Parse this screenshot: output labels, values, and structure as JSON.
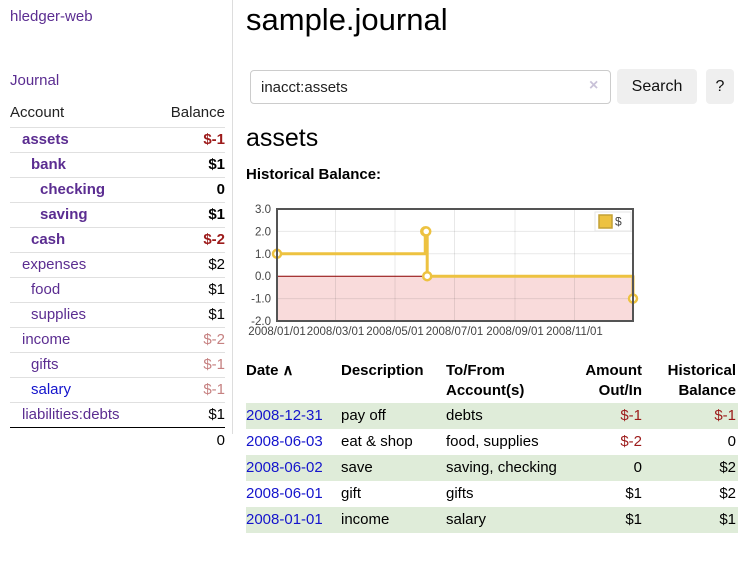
{
  "colors": {
    "link_purple": "#5b2d91",
    "link_blue": "#1414cc",
    "negative_red": "#9c1a1a",
    "negative_muted": "#c68181",
    "row_green": "#dfecd9",
    "chart_gold": "#edc240",
    "chart_negative_bg": "#f9dbdb",
    "chart_zero_line": "#8b0000"
  },
  "sidebar": {
    "app_title": "hledger-web",
    "journal_link": "Journal",
    "accounts_table": {
      "headers": {
        "account": "Account",
        "balance": "Balance"
      },
      "rows": [
        {
          "name": "assets",
          "balance": "$-1",
          "indent": 0,
          "bold": true,
          "balance_style": "neg-strong"
        },
        {
          "name": "bank",
          "balance": "$1",
          "indent": 1,
          "bold": true,
          "balance_style": "normal"
        },
        {
          "name": "checking",
          "balance": "0",
          "indent": 2,
          "bold": true,
          "balance_style": "normal"
        },
        {
          "name": "saving",
          "balance": "$1",
          "indent": 2,
          "bold": true,
          "balance_style": "normal"
        },
        {
          "name": "cash",
          "balance": "$-2",
          "indent": 1,
          "bold": true,
          "balance_style": "neg-strong"
        },
        {
          "name": "expenses",
          "balance": "$2",
          "indent": 0,
          "bold": false,
          "balance_style": "normal"
        },
        {
          "name": "food",
          "balance": "$1",
          "indent": 1,
          "bold": false,
          "balance_style": "normal"
        },
        {
          "name": "supplies",
          "balance": "$1",
          "indent": 1,
          "bold": false,
          "balance_style": "normal"
        },
        {
          "name": "income",
          "balance": "$-2",
          "indent": 0,
          "bold": false,
          "balance_style": "neg-muted"
        },
        {
          "name": "gifts",
          "balance": "$-1",
          "indent": 1,
          "bold": false,
          "balance_style": "neg-muted"
        },
        {
          "name": "salary",
          "balance": "$-1",
          "indent": 1,
          "bold": false,
          "balance_style": "neg-muted",
          "link_color": "blue"
        },
        {
          "name": "liabilities:debts",
          "balance": "$1",
          "indent": 0,
          "bold": false,
          "balance_style": "normal"
        }
      ],
      "total": "0"
    }
  },
  "main": {
    "title": "sample.journal",
    "search": {
      "value": "inacct:assets",
      "clear_icon": "×",
      "search_button": "Search",
      "help_button": "?"
    },
    "account_heading": "assets",
    "chart_label": "Historical Balance:"
  },
  "chart_data": {
    "type": "line",
    "step": true,
    "title": "Historical Balance:",
    "series": [
      {
        "name": "$",
        "points": [
          [
            "2008-01-01",
            1
          ],
          [
            "2008-06-01",
            2
          ],
          [
            "2008-06-02",
            2
          ],
          [
            "2008-06-03",
            0
          ],
          [
            "2008-12-31",
            -1
          ]
        ]
      }
    ],
    "x_range": [
      "2008-01-01",
      "2008-12-31"
    ],
    "ylim": [
      -2,
      3
    ],
    "y_ticks": [
      3.0,
      2.0,
      1.0,
      0.0,
      -1.0,
      -2.0
    ],
    "y_tick_labels": [
      "3.0",
      "2.0",
      "1.0",
      "0.0",
      "-1.0",
      "-2.0"
    ],
    "x_tick_dates": [
      "2008-01-01",
      "2008-03-01",
      "2008-05-01",
      "2008-07-01",
      "2008-09-01",
      "2008-11-01"
    ],
    "x_tick_labels": [
      "2008/01/01",
      "2008/03/01",
      "2008/05/01",
      "2008/07/01",
      "2008/09/01",
      "2008/11/01"
    ],
    "legend": {
      "label": "$",
      "position": "top-right"
    },
    "grid": true,
    "negative_region_shaded": true
  },
  "transactions": {
    "headers": [
      "Date",
      "Description",
      "To/From Account(s)",
      "Amount Out/In",
      "Historical Balance"
    ],
    "sort_icon": "∧",
    "rows": [
      {
        "date": "2008-12-31",
        "description": "pay off",
        "accounts": "debts",
        "amount": "$-1",
        "balance": "$-1",
        "amount_negative": true,
        "balance_negative": true
      },
      {
        "date": "2008-06-03",
        "description": "eat & shop",
        "accounts": "food, supplies",
        "amount": "$-2",
        "balance": "0",
        "amount_negative": true,
        "balance_negative": false
      },
      {
        "date": "2008-06-02",
        "description": "save",
        "accounts": "saving, checking",
        "amount": "0",
        "balance": "$2",
        "amount_negative": false,
        "balance_negative": false
      },
      {
        "date": "2008-06-01",
        "description": "gift",
        "accounts": "gifts",
        "amount": "$1",
        "balance": "$2",
        "amount_negative": false,
        "balance_negative": false
      },
      {
        "date": "2008-01-01",
        "description": "income",
        "accounts": "salary",
        "amount": "$1",
        "balance": "$1",
        "amount_negative": false,
        "balance_negative": false
      }
    ]
  }
}
